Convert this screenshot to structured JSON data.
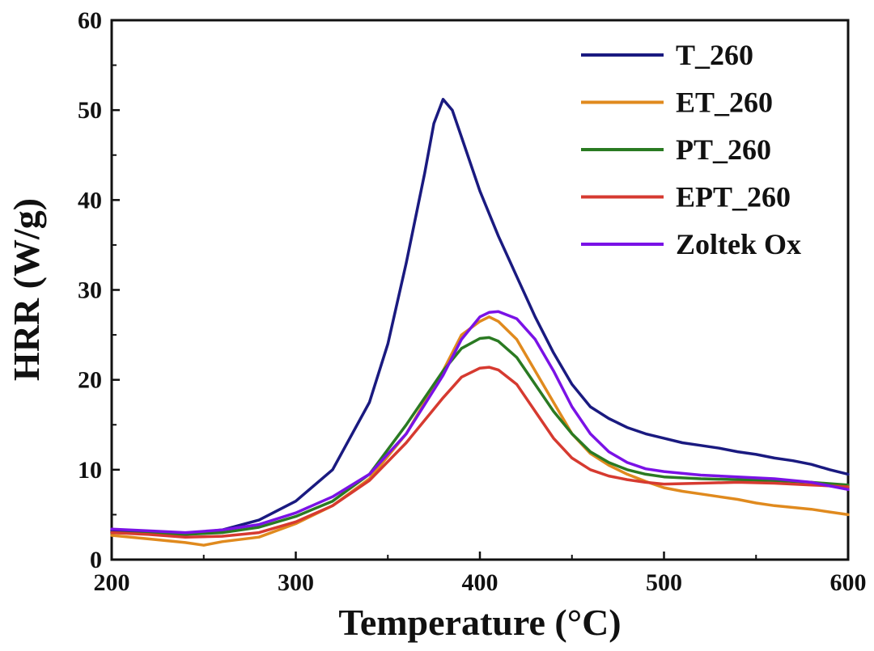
{
  "chart_data": {
    "type": "line",
    "title": "",
    "xlabel": "Temperature (°C)",
    "ylabel": "HRR (W/g)",
    "xlim": [
      200,
      600
    ],
    "ylim": [
      0,
      60
    ],
    "xticks": [
      200,
      300,
      400,
      500,
      600
    ],
    "yticks": [
      0,
      10,
      20,
      30,
      40,
      50,
      60
    ],
    "grid": false,
    "legend_position": "top-right",
    "series": [
      {
        "name": "T_260",
        "color": "#1a1a80",
        "points": [
          [
            200,
            3.2
          ],
          [
            220,
            3.0
          ],
          [
            240,
            2.9
          ],
          [
            260,
            3.3
          ],
          [
            280,
            4.4
          ],
          [
            300,
            6.5
          ],
          [
            320,
            10
          ],
          [
            340,
            17.5
          ],
          [
            350,
            24
          ],
          [
            360,
            33
          ],
          [
            370,
            43
          ],
          [
            375,
            48.5
          ],
          [
            380,
            51.2
          ],
          [
            385,
            50
          ],
          [
            390,
            47
          ],
          [
            400,
            41
          ],
          [
            410,
            36
          ],
          [
            420,
            31.5
          ],
          [
            430,
            27
          ],
          [
            440,
            23
          ],
          [
            450,
            19.5
          ],
          [
            460,
            17
          ],
          [
            470,
            15.7
          ],
          [
            480,
            14.7
          ],
          [
            490,
            14
          ],
          [
            500,
            13.5
          ],
          [
            510,
            13
          ],
          [
            520,
            12.7
          ],
          [
            530,
            12.4
          ],
          [
            540,
            12
          ],
          [
            550,
            11.7
          ],
          [
            560,
            11.3
          ],
          [
            570,
            11
          ],
          [
            580,
            10.6
          ],
          [
            590,
            10
          ],
          [
            600,
            9.5
          ]
        ]
      },
      {
        "name": "ET_260",
        "color": "#e08a1e",
        "points": [
          [
            200,
            2.7
          ],
          [
            220,
            2.3
          ],
          [
            240,
            1.9
          ],
          [
            250,
            1.6
          ],
          [
            260,
            2.0
          ],
          [
            280,
            2.5
          ],
          [
            300,
            4
          ],
          [
            320,
            6
          ],
          [
            340,
            9
          ],
          [
            360,
            14
          ],
          [
            380,
            21
          ],
          [
            390,
            25
          ],
          [
            400,
            26.5
          ],
          [
            405,
            27
          ],
          [
            410,
            26.5
          ],
          [
            420,
            24.5
          ],
          [
            430,
            21
          ],
          [
            440,
            17.5
          ],
          [
            450,
            14
          ],
          [
            460,
            11.8
          ],
          [
            470,
            10.5
          ],
          [
            480,
            9.5
          ],
          [
            490,
            8.7
          ],
          [
            500,
            8
          ],
          [
            510,
            7.6
          ],
          [
            520,
            7.3
          ],
          [
            530,
            7
          ],
          [
            540,
            6.7
          ],
          [
            550,
            6.3
          ],
          [
            560,
            6
          ],
          [
            570,
            5.8
          ],
          [
            580,
            5.6
          ],
          [
            590,
            5.3
          ],
          [
            600,
            5.0
          ]
        ]
      },
      {
        "name": "PT_260",
        "color": "#2a7a22",
        "points": [
          [
            200,
            3.0
          ],
          [
            220,
            2.9
          ],
          [
            240,
            2.8
          ],
          [
            260,
            3.0
          ],
          [
            280,
            3.6
          ],
          [
            300,
            4.8
          ],
          [
            320,
            6.5
          ],
          [
            340,
            9.5
          ],
          [
            360,
            15
          ],
          [
            380,
            21
          ],
          [
            390,
            23.5
          ],
          [
            400,
            24.6
          ],
          [
            405,
            24.7
          ],
          [
            410,
            24.3
          ],
          [
            420,
            22.5
          ],
          [
            430,
            19.5
          ],
          [
            440,
            16.5
          ],
          [
            450,
            14
          ],
          [
            460,
            12
          ],
          [
            470,
            10.8
          ],
          [
            480,
            10
          ],
          [
            490,
            9.5
          ],
          [
            500,
            9.2
          ],
          [
            520,
            9
          ],
          [
            540,
            8.9
          ],
          [
            560,
            8.8
          ],
          [
            580,
            8.6
          ],
          [
            600,
            8.3
          ]
        ]
      },
      {
        "name": "EPT_260",
        "color": "#d63a30",
        "points": [
          [
            200,
            3.0
          ],
          [
            220,
            2.8
          ],
          [
            240,
            2.5
          ],
          [
            260,
            2.6
          ],
          [
            280,
            3.0
          ],
          [
            300,
            4.2
          ],
          [
            320,
            6
          ],
          [
            340,
            8.8
          ],
          [
            360,
            13
          ],
          [
            380,
            18
          ],
          [
            390,
            20.3
          ],
          [
            400,
            21.3
          ],
          [
            405,
            21.4
          ],
          [
            410,
            21.1
          ],
          [
            420,
            19.5
          ],
          [
            430,
            16.5
          ],
          [
            440,
            13.5
          ],
          [
            450,
            11.3
          ],
          [
            460,
            10
          ],
          [
            470,
            9.3
          ],
          [
            480,
            8.9
          ],
          [
            490,
            8.6
          ],
          [
            500,
            8.4
          ],
          [
            520,
            8.5
          ],
          [
            540,
            8.6
          ],
          [
            560,
            8.5
          ],
          [
            580,
            8.3
          ],
          [
            600,
            8.1
          ]
        ]
      },
      {
        "name": "Zoltek Ox",
        "color": "#7a12e6",
        "points": [
          [
            200,
            3.4
          ],
          [
            220,
            3.2
          ],
          [
            240,
            3.0
          ],
          [
            260,
            3.3
          ],
          [
            280,
            3.9
          ],
          [
            300,
            5.2
          ],
          [
            320,
            7
          ],
          [
            340,
            9.5
          ],
          [
            360,
            14
          ],
          [
            380,
            20.5
          ],
          [
            390,
            24.5
          ],
          [
            400,
            27
          ],
          [
            405,
            27.5
          ],
          [
            410,
            27.6
          ],
          [
            420,
            26.8
          ],
          [
            430,
            24.5
          ],
          [
            440,
            21
          ],
          [
            450,
            17
          ],
          [
            460,
            14
          ],
          [
            470,
            12
          ],
          [
            480,
            10.8
          ],
          [
            490,
            10.1
          ],
          [
            500,
            9.8
          ],
          [
            520,
            9.4
          ],
          [
            540,
            9.2
          ],
          [
            560,
            9
          ],
          [
            580,
            8.6
          ],
          [
            600,
            7.8
          ]
        ]
      }
    ]
  }
}
